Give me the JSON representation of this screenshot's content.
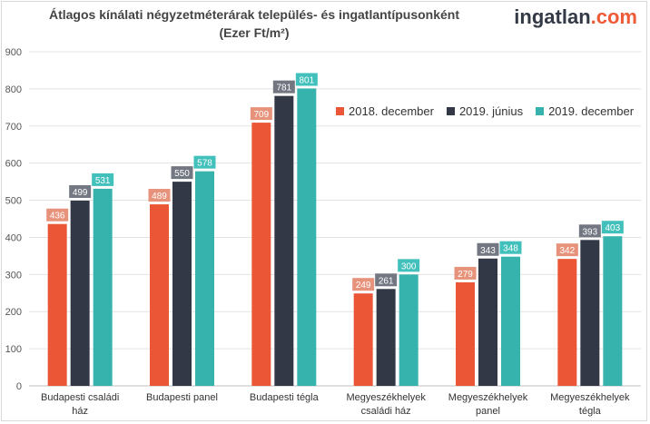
{
  "title_line1": "Átlagos kínálati négyzetméterárak település- és ingatlantípusonként",
  "title_line2": "(Ezer Ft/m²)",
  "logo": {
    "main": "ingatlan",
    "accent": ".com"
  },
  "colors": {
    "s1": "#ea5636",
    "s2": "#323845",
    "s3": "#36b3ad",
    "label_s1": "#e7937c",
    "label_s2": "#727782",
    "label_s3": "#42c0bb"
  },
  "chart_data": {
    "type": "bar",
    "title": "Átlagos kínálati négyzetméterárak település- és ingatlantípusonként (Ezer Ft/m²)",
    "categories": [
      [
        "Budapesti családi",
        "ház"
      ],
      [
        "Budapesti panel"
      ],
      [
        "Budapesti tégla"
      ],
      [
        "Megyeszékhelyek",
        "családi ház"
      ],
      [
        "Megyeszékhelyek",
        "panel"
      ],
      [
        "Megyeszékhelyek",
        "tégla"
      ]
    ],
    "series": [
      {
        "name": "2018. december",
        "values": [
          436,
          489,
          709,
          249,
          279,
          342
        ]
      },
      {
        "name": "2019. június",
        "values": [
          499,
          550,
          781,
          261,
          343,
          393
        ]
      },
      {
        "name": "2019. december",
        "values": [
          531,
          578,
          801,
          300,
          348,
          403
        ]
      }
    ],
    "ylim": [
      0,
      900
    ],
    "yticks": [
      0,
      100,
      200,
      300,
      400,
      500,
      600,
      700,
      800,
      900
    ],
    "grid": true,
    "legend_position": "top-right"
  }
}
